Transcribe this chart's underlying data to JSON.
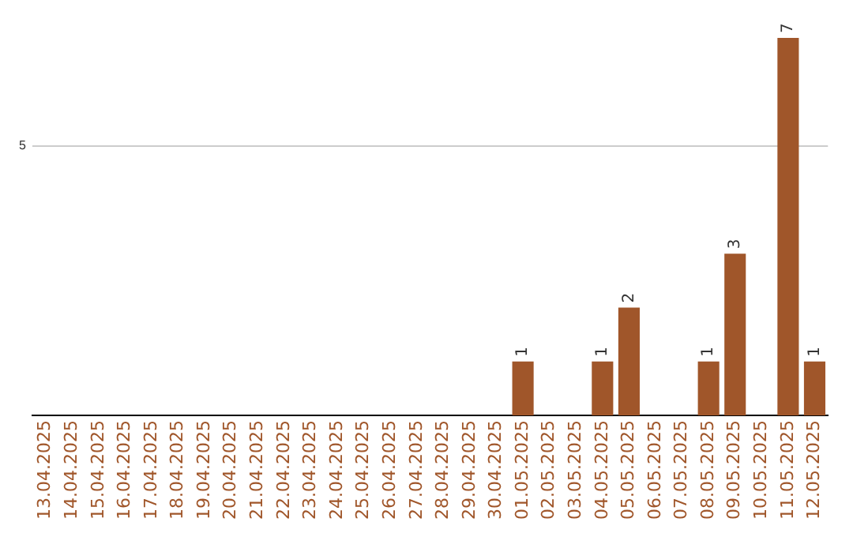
{
  "chart_data": {
    "type": "bar",
    "categories": [
      "13.04.2025",
      "14.04.2025",
      "15.04.2025",
      "16.04.2025",
      "17.04.2025",
      "18.04.2025",
      "19.04.2025",
      "20.04.2025",
      "21.04.2025",
      "22.04.2025",
      "23.04.2025",
      "24.04.2025",
      "25.04.2025",
      "26.04.2025",
      "27.04.2025",
      "28.04.2025",
      "29.04.2025",
      "30.04.2025",
      "01.05.2025",
      "02.05.2025",
      "03.05.2025",
      "04.05.2025",
      "05.05.2025",
      "06.05.2025",
      "07.05.2025",
      "08.05.2025",
      "09.05.2025",
      "10.05.2025",
      "11.05.2025",
      "12.05.2025"
    ],
    "values": [
      null,
      null,
      null,
      null,
      null,
      null,
      null,
      null,
      null,
      null,
      null,
      null,
      null,
      null,
      null,
      null,
      null,
      null,
      1,
      null,
      null,
      1,
      2,
      null,
      null,
      1,
      3,
      null,
      7,
      1
    ],
    "color": "#a0562a",
    "ylim": [
      0,
      7
    ],
    "yticks": [
      5
    ],
    "grid": "y",
    "data_labels": true,
    "legend": false
  }
}
